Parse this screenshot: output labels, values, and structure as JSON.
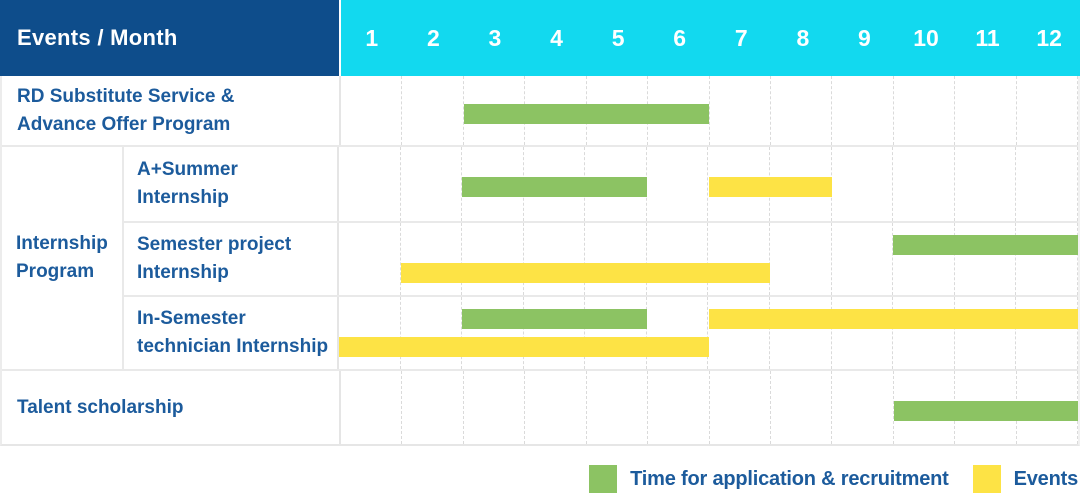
{
  "colors": {
    "header_bg": "#0E4D8B",
    "month_header_bg": "#12D9EF",
    "application_bar": "#8CC363",
    "events_bar": "#FDE345",
    "label_text": "#1C5B9C",
    "header_text": "#FFFFFF"
  },
  "header": {
    "corner_label": "Events / Month"
  },
  "chart_data": {
    "type": "bar",
    "subtype": "gantt",
    "title": "Events / Month",
    "x_axis": {
      "unit": "month",
      "ticks": [
        "1",
        "2",
        "3",
        "4",
        "5",
        "6",
        "7",
        "8",
        "9",
        "10",
        "11",
        "12"
      ],
      "min": 1,
      "max": 12,
      "grid": "dashed-vertical"
    },
    "legend": [
      {
        "series": "application",
        "label": "Time for application & recruitment",
        "color": "#8CC363"
      },
      {
        "series": "events",
        "label": "Events",
        "color": "#FDE345"
      }
    ],
    "legend_position": "bottom-right",
    "rows": [
      {
        "group": null,
        "label": "RD Substitute Service &\nAdvance Offer Program",
        "bars": [
          {
            "series": "application",
            "start_month": 3,
            "end_month": 6,
            "lane": "middle"
          }
        ]
      },
      {
        "group": "Internship\nProgram",
        "label": "A+Summer\nInternship",
        "bars": [
          {
            "series": "application",
            "start_month": 3,
            "end_month": 5,
            "lane": "middle"
          },
          {
            "series": "events",
            "start_month": 7,
            "end_month": 8,
            "lane": "middle"
          }
        ]
      },
      {
        "group": "Internship\nProgram",
        "label": "Semester project\nInternship",
        "bars": [
          {
            "series": "application",
            "start_month": 10,
            "end_month": 12,
            "lane": "top"
          },
          {
            "series": "events",
            "start_month": 2,
            "end_month": 7,
            "lane": "bottom"
          }
        ]
      },
      {
        "group": "Internship\nProgram",
        "label": "In-Semester\ntechnician Internship",
        "bars": [
          {
            "series": "application",
            "start_month": 3,
            "end_month": 5,
            "lane": "top"
          },
          {
            "series": "events",
            "start_month": 7,
            "end_month": 12,
            "lane": "top"
          },
          {
            "series": "events",
            "start_month": 1,
            "end_month": 6,
            "lane": "bottom"
          }
        ]
      },
      {
        "group": null,
        "label": "Talent scholarship",
        "bars": [
          {
            "series": "application",
            "start_month": 10,
            "end_month": 12,
            "lane": "middle"
          }
        ]
      }
    ]
  }
}
